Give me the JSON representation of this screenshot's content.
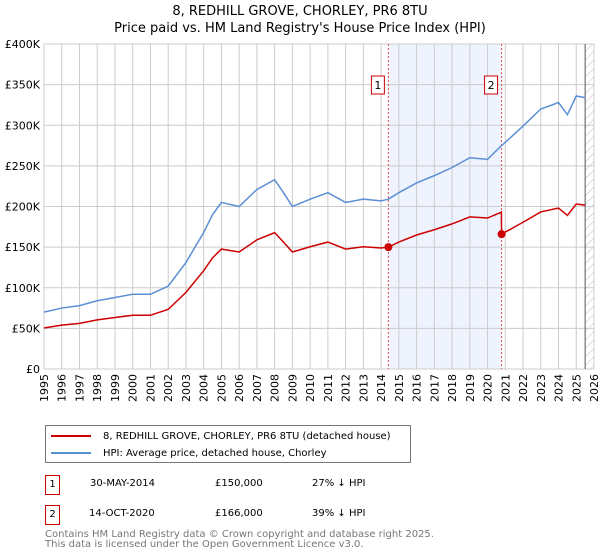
{
  "title": "8, REDHILL GROVE, CHORLEY, PR6 8TU",
  "subtitle": "Price paid vs. HM Land Registry's House Price Index (HPI)",
  "chart_data": {
    "type": "line",
    "title": "8, REDHILL GROVE, CHORLEY, PR6 8TU — Price paid vs. HM Land Registry's House Price Index (HPI)",
    "xlim": [
      1995,
      2026
    ],
    "ylim": [
      0,
      400000
    ],
    "grid": true,
    "x_ticks": [
      "1995",
      "1996",
      "1997",
      "1998",
      "1999",
      "2000",
      "2001",
      "2002",
      "2003",
      "2004",
      "2005",
      "2006",
      "2007",
      "2008",
      "2009",
      "2010",
      "2011",
      "2012",
      "2013",
      "2014",
      "2015",
      "2016",
      "2017",
      "2018",
      "2019",
      "2020",
      "2021",
      "2022",
      "2023",
      "2024",
      "2025",
      "2026"
    ],
    "y_ticks": [
      {
        "v": 0,
        "label": "£0"
      },
      {
        "v": 50000,
        "label": "£50K"
      },
      {
        "v": 100000,
        "label": "£100K"
      },
      {
        "v": 150000,
        "label": "£150K"
      },
      {
        "v": 200000,
        "label": "£200K"
      },
      {
        "v": 250000,
        "label": "£250K"
      },
      {
        "v": 300000,
        "label": "£300K"
      },
      {
        "v": 350000,
        "label": "£350K"
      },
      {
        "v": 400000,
        "label": "£400K"
      }
    ],
    "x": [
      1995,
      1996,
      1997,
      1998,
      1999,
      2000,
      2001,
      2001.5,
      2002,
      2003,
      2004,
      2004.5,
      2005,
      2006,
      2007,
      2008,
      2008.5,
      2009,
      2010,
      2011,
      2012,
      2013,
      2014,
      2014.41,
      2015,
      2016,
      2017,
      2018,
      2019,
      2020,
      2020.78,
      2020.79,
      2021,
      2022,
      2023,
      2024,
      2024.5,
      2025,
      2025.5
    ],
    "series": [
      {
        "name": "8, REDHILL GROVE, CHORLEY, PR6 8TU (detached house)",
        "color": "#cc0000",
        "values": [
          50400,
          54000,
          56200,
          60500,
          63400,
          66200,
          66200,
          69800,
          73400,
          94300,
          121000,
          136800,
          147600,
          144000,
          159000,
          167800,
          156200,
          144000,
          150500,
          156200,
          147600,
          150500,
          149000,
          150000,
          156200,
          164900,
          171400,
          178600,
          187200,
          185800,
          193000,
          166000,
          168500,
          180600,
          193300,
          198100,
          189000,
          203000,
          201700
        ]
      },
      {
        "name": "HPI: Average price, detached house, Chorley",
        "color": "#5b8fd4",
        "values": [
          70000,
          75000,
          78000,
          84000,
          88000,
          92000,
          92000,
          97000,
          102000,
          131000,
          168000,
          190000,
          205000,
          200000,
          221000,
          233000,
          217000,
          200000,
          209000,
          217000,
          205000,
          209000,
          207000,
          209000,
          217000,
          229000,
          238000,
          248000,
          260000,
          258000,
          275000,
          275000,
          279000,
          299000,
          320000,
          328000,
          313000,
          336000,
          334000
        ]
      }
    ],
    "sales": [
      {
        "label": "1",
        "x": 2014.41,
        "y": 150000
      },
      {
        "label": "2",
        "x": 2020.79,
        "y": 166000
      }
    ],
    "shaded_range": [
      2014.41,
      2020.79
    ],
    "hatched_from": 2025.5,
    "legend_position": "below"
  },
  "legend": {
    "items": [
      {
        "label": "8, REDHILL GROVE, CHORLEY, PR6 8TU (detached house)",
        "color": "#cc0000"
      },
      {
        "label": "HPI: Average price, detached house, Chorley",
        "color": "#5b8fd4"
      }
    ]
  },
  "transactions": [
    {
      "num": "1",
      "date": "30-MAY-2014",
      "price": "£150,000",
      "hpi": "27% ↓ HPI"
    },
    {
      "num": "2",
      "date": "14-OCT-2020",
      "price": "£166,000",
      "hpi": "39% ↓ HPI"
    }
  ],
  "footer": {
    "line1": "Contains HM Land Registry data © Crown copyright and database right 2025.",
    "line2": "This data is licensed under the Open Government Licence v3.0."
  }
}
